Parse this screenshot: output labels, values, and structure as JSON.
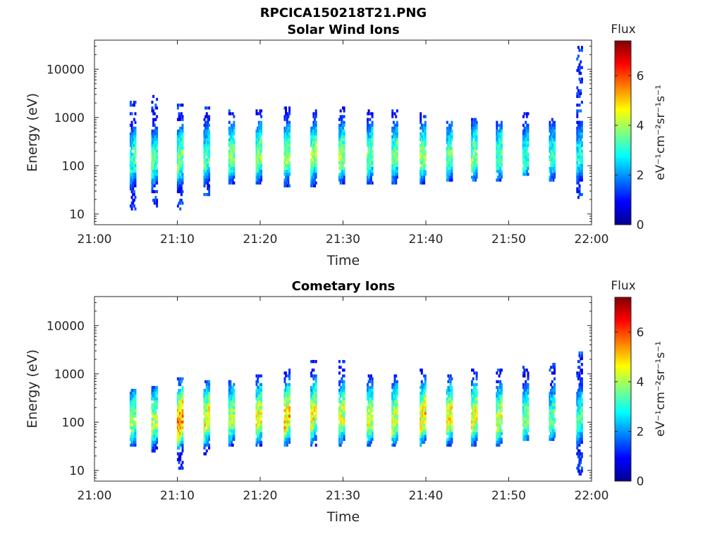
{
  "figure_title": "RPCICA150218T21.PNG",
  "chart_data": [
    {
      "type": "heatmap",
      "title": "Solar Wind Ions",
      "xlabel": "Time",
      "ylabel": "Energy (eV)",
      "x_ticks": [
        "21:00",
        "21:10",
        "21:20",
        "21:30",
        "21:40",
        "21:50",
        "22:00"
      ],
      "xlim": [
        "21:00",
        "22:00"
      ],
      "y_scale": "log",
      "y_ticks": [
        10,
        100,
        1000,
        10000
      ],
      "y_tick_labels": [
        "10",
        "100",
        "1000",
        "10000"
      ],
      "ylim": [
        6,
        40000
      ],
      "colorbar": {
        "title": "Flux",
        "label": "eV⁻¹cm⁻²sr⁻¹s⁻¹",
        "range": [
          0,
          7.4
        ],
        "ticks": [
          "0",
          "2",
          "4",
          "6"
        ],
        "colormap": "jet"
      },
      "bursts": [
        {
          "t": 4.6,
          "c": 120,
          "lo": 12,
          "hi": 2500,
          "peak": 3.4
        },
        {
          "t": 7.2,
          "c": 120,
          "lo": 14,
          "hi": 3000,
          "peak": 3.6
        },
        {
          "t": 10.3,
          "c": 130,
          "lo": 12,
          "hi": 2000,
          "peak": 3.9
        },
        {
          "t": 13.5,
          "c": 140,
          "lo": 25,
          "hi": 1800,
          "peak": 3.5
        },
        {
          "t": 16.5,
          "c": 150,
          "lo": 40,
          "hi": 1500,
          "peak": 3.8
        },
        {
          "t": 19.8,
          "c": 150,
          "lo": 40,
          "hi": 1500,
          "peak": 4.0
        },
        {
          "t": 23.2,
          "c": 150,
          "lo": 35,
          "hi": 1600,
          "peak": 4.0
        },
        {
          "t": 26.4,
          "c": 150,
          "lo": 35,
          "hi": 1800,
          "peak": 4.1
        },
        {
          "t": 29.8,
          "c": 150,
          "lo": 40,
          "hi": 1700,
          "peak": 4.0
        },
        {
          "t": 33.2,
          "c": 150,
          "lo": 40,
          "hi": 1500,
          "peak": 3.8
        },
        {
          "t": 36.2,
          "c": 150,
          "lo": 40,
          "hi": 1400,
          "peak": 3.7
        },
        {
          "t": 39.6,
          "c": 150,
          "lo": 40,
          "hi": 1300,
          "peak": 4.0
        },
        {
          "t": 42.8,
          "c": 150,
          "lo": 50,
          "hi": 900,
          "peak": 3.6
        },
        {
          "t": 45.8,
          "c": 150,
          "lo": 50,
          "hi": 1000,
          "peak": 3.9
        },
        {
          "t": 48.8,
          "c": 150,
          "lo": 50,
          "hi": 900,
          "peak": 3.6
        },
        {
          "t": 52.0,
          "c": 140,
          "lo": 60,
          "hi": 1200,
          "peak": 3.3
        },
        {
          "t": 55.2,
          "c": 150,
          "lo": 50,
          "hi": 1000,
          "peak": 3.3
        },
        {
          "t": 58.5,
          "c": 150,
          "lo": 20,
          "hi": 30000,
          "peak": 3.0
        }
      ]
    },
    {
      "type": "heatmap",
      "title": "Cometary Ions",
      "xlabel": "Time",
      "ylabel": "Energy (eV)",
      "x_ticks": [
        "21:00",
        "21:10",
        "21:20",
        "21:30",
        "21:40",
        "21:50",
        "22:00"
      ],
      "xlim": [
        "21:00",
        "22:00"
      ],
      "y_scale": "log",
      "y_ticks": [
        10,
        100,
        1000,
        10000
      ],
      "y_tick_labels": [
        "10",
        "100",
        "1000",
        "10000"
      ],
      "ylim": [
        6,
        40000
      ],
      "colorbar": {
        "title": "Flux",
        "label": "eV⁻¹cm⁻²sr⁻¹s⁻¹",
        "range": [
          0,
          7.4
        ],
        "ticks": [
          "0",
          "2",
          "4",
          "6"
        ],
        "colormap": "jet"
      },
      "bursts": [
        {
          "t": 4.6,
          "c": 100,
          "lo": 30,
          "hi": 500,
          "peak": 4.0
        },
        {
          "t": 7.2,
          "c": 100,
          "lo": 25,
          "hi": 600,
          "peak": 4.3
        },
        {
          "t": 10.3,
          "c": 100,
          "lo": 10,
          "hi": 800,
          "peak": 5.8
        },
        {
          "t": 13.5,
          "c": 110,
          "lo": 20,
          "hi": 700,
          "peak": 4.8
        },
        {
          "t": 16.5,
          "c": 120,
          "lo": 30,
          "hi": 700,
          "peak": 4.2
        },
        {
          "t": 19.8,
          "c": 120,
          "lo": 30,
          "hi": 1000,
          "peak": 4.8
        },
        {
          "t": 23.2,
          "c": 120,
          "lo": 30,
          "hi": 1200,
          "peak": 5.2
        },
        {
          "t": 26.4,
          "c": 130,
          "lo": 30,
          "hi": 2000,
          "peak": 4.8
        },
        {
          "t": 29.8,
          "c": 120,
          "lo": 30,
          "hi": 2000,
          "peak": 4.5
        },
        {
          "t": 33.2,
          "c": 110,
          "lo": 30,
          "hi": 1000,
          "peak": 4.5
        },
        {
          "t": 36.2,
          "c": 110,
          "lo": 30,
          "hi": 1000,
          "peak": 4.6
        },
        {
          "t": 39.6,
          "c": 120,
          "lo": 30,
          "hi": 1200,
          "peak": 5.0
        },
        {
          "t": 42.8,
          "c": 120,
          "lo": 30,
          "hi": 1000,
          "peak": 4.8
        },
        {
          "t": 45.8,
          "c": 120,
          "lo": 30,
          "hi": 1300,
          "peak": 4.7
        },
        {
          "t": 48.8,
          "c": 110,
          "lo": 30,
          "hi": 1300,
          "peak": 4.4
        },
        {
          "t": 52.0,
          "c": 110,
          "lo": 40,
          "hi": 1500,
          "peak": 3.8
        },
        {
          "t": 55.2,
          "c": 110,
          "lo": 40,
          "hi": 1600,
          "peak": 3.6
        },
        {
          "t": 58.5,
          "c": 110,
          "lo": 8,
          "hi": 3000,
          "peak": 3.4
        }
      ]
    }
  ]
}
